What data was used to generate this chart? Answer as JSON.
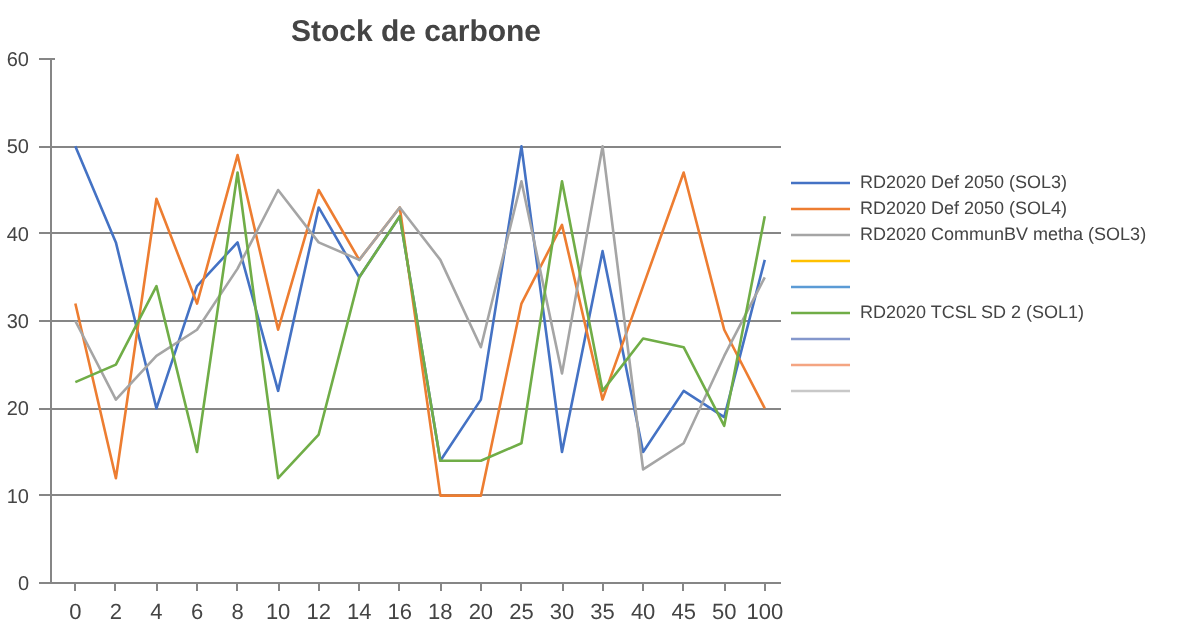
{
  "chart_data": {
    "type": "line",
    "title": "Stock de carbone",
    "categories": [
      "0",
      "2",
      "4",
      "6",
      "8",
      "10",
      "12",
      "14",
      "16",
      "18",
      "20",
      "25",
      "30",
      "35",
      "40",
      "45",
      "50",
      "100"
    ],
    "ylim": [
      0,
      60
    ],
    "yticks": [
      0,
      10,
      20,
      30,
      40,
      50,
      60
    ],
    "grid": "y",
    "legend": "right",
    "marker": "none",
    "series": [
      {
        "name": "RD2020 Def 2050 (SOL3)",
        "color": "#4472c4",
        "values": [
          50,
          39,
          20,
          34,
          39,
          22,
          43,
          35,
          42,
          14,
          21,
          50,
          15,
          38,
          15,
          22,
          19,
          37
        ]
      },
      {
        "name": "RD2020 Def 2050 (SOL4)",
        "color": "#ed7d31",
        "values": [
          32,
          12,
          44,
          32,
          49,
          29,
          45,
          37,
          43,
          10,
          10,
          32,
          41,
          21,
          34,
          47,
          29,
          20
        ]
      },
      {
        "name": "RD2020 CommunBV metha (SOL3)",
        "color": "#a5a5a5",
        "values": [
          30,
          21,
          26,
          29,
          36,
          45,
          39,
          37,
          43,
          37,
          27,
          46,
          24,
          50,
          13,
          16,
          26,
          35
        ]
      },
      {
        "color": "#ffc000",
        "values": [
          null,
          null,
          null,
          null,
          null,
          null,
          null,
          null,
          null,
          null,
          null,
          null,
          null,
          null,
          null,
          null,
          null,
          null
        ]
      },
      {
        "color": "#5b9bd5",
        "values": [
          null,
          null,
          null,
          null,
          null,
          null,
          null,
          null,
          null,
          null,
          null,
          null,
          null,
          null,
          null,
          null,
          null,
          null
        ]
      },
      {
        "name": "RD2020 TCSL SD 2 (SOL1)",
        "color": "#70ad47",
        "values": [
          23,
          25,
          34,
          15,
          47,
          12,
          17,
          35,
          42,
          14,
          14,
          16,
          46,
          22,
          28,
          27,
          18,
          42
        ]
      },
      {
        "color": "#8497cc",
        "values": [
          null,
          null,
          null,
          null,
          null,
          null,
          null,
          null,
          null,
          null,
          null,
          null,
          null,
          null,
          null,
          null,
          null,
          null
        ]
      },
      {
        "color": "#f4a582",
        "values": [
          null,
          null,
          null,
          null,
          null,
          null,
          null,
          null,
          null,
          null,
          null,
          null,
          null,
          null,
          null,
          null,
          null,
          null
        ]
      },
      {
        "color": "#c8c8c8",
        "values": [
          null,
          null,
          null,
          null,
          null,
          null,
          null,
          null,
          null,
          null,
          null,
          null,
          null,
          null,
          null,
          null,
          null,
          null
        ]
      }
    ]
  }
}
